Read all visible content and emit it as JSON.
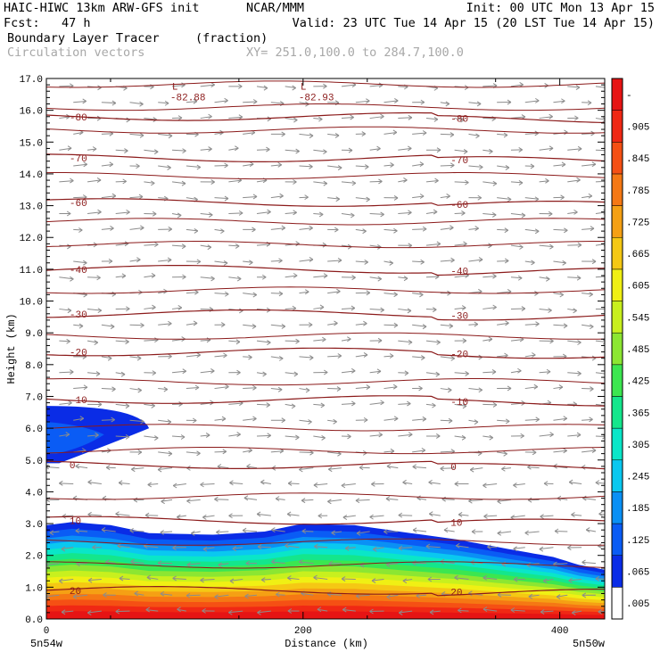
{
  "header": {
    "model": "HAIC-HIWC 13km ARW-GFS init",
    "org": "NCAR/MMM",
    "init": "Init: 00 UTC Mon 13 Apr 15",
    "fcst": "Fcst:   47 h",
    "valid": "Valid: 23 UTC Tue 14 Apr 15 (20 LST Tue 14 Apr 15)",
    "field": "Boundary Layer Tracer",
    "field_units": "(fraction)",
    "vector_label": "Circulation vectors",
    "xsec": "XY= 251.0,100.0 to 284.7,100.0"
  },
  "colors": {
    "contour": "#8b1a1a",
    "vector": "#8c8c8c",
    "text_gray": "#a8a8a8"
  },
  "chart_data": {
    "type": "heatmap",
    "title": "Boundary Layer Tracer",
    "xlabel": "Distance (km)",
    "ylabel": "Height (km)",
    "xlim": [
      0,
      435
    ],
    "ylim": [
      0,
      17
    ],
    "x_ticks": [
      {
        "value": 0,
        "label": "0"
      },
      {
        "value": 200,
        "label": "200"
      },
      {
        "value": 400,
        "label": "400"
      }
    ],
    "x_end_labels": {
      "left": "5n54w",
      "right": "5n50w"
    },
    "y_ticks": [
      "0.0",
      "1.0",
      "2.0",
      "3.0",
      "4.0",
      "5.0",
      "6.0",
      "7.0",
      "8.0",
      "9.0",
      "10.0",
      "11.0",
      "12.0",
      "13.0",
      "14.0",
      "15.0",
      "16.0",
      "17.0"
    ],
    "colorbar": {
      "labels": [
        ".005",
        ".065",
        ".125",
        ".185",
        ".245",
        ".305",
        ".365",
        ".425",
        ".485",
        ".545",
        ".605",
        ".665",
        ".725",
        ".785",
        ".845",
        ".905",
        "-"
      ],
      "colors": [
        "#ffffff",
        "#0a2ce6",
        "#0a5cf5",
        "#0a90f5",
        "#0ac8f0",
        "#0ae6c8",
        "#14e68c",
        "#3ce650",
        "#8ce632",
        "#c8f01e",
        "#f0f014",
        "#f5c814",
        "#f5a014",
        "#f57814",
        "#f55014",
        "#f02814",
        "#e61414"
      ]
    },
    "isotherms": [
      {
        "label": "20",
        "value": 20,
        "y_km": 0.9
      },
      {
        "label": "10",
        "value": 10,
        "y_km": 3.1
      },
      {
        "label": "0",
        "value": 0,
        "y_km": 4.85
      },
      {
        "label": "-10",
        "value": -10,
        "y_km": 6.9
      },
      {
        "label": "-20",
        "value": -20,
        "y_km": 8.4
      },
      {
        "label": "-30",
        "value": -30,
        "y_km": 9.6
      },
      {
        "label": "-40",
        "value": -40,
        "y_km": 11.0
      },
      {
        "label": "-60",
        "value": -60,
        "y_km": 13.1
      },
      {
        "label": "-70",
        "value": -70,
        "y_km": 14.5
      },
      {
        "label": "-80",
        "value": -80,
        "y_km": 15.8
      }
    ],
    "minima": [
      {
        "symbol": "L",
        "label": "-82.88",
        "x": 100,
        "y": 16.6
      },
      {
        "symbol": "L",
        "label": "-82.93",
        "x": 200,
        "y": 16.6
      }
    ],
    "tracer_top_km": [
      [
        0,
        2.95
      ],
      [
        20,
        3.05
      ],
      [
        50,
        2.95
      ],
      [
        80,
        2.7
      ],
      [
        130,
        2.65
      ],
      [
        170,
        2.75
      ],
      [
        200,
        3.0
      ],
      [
        240,
        2.95
      ],
      [
        275,
        2.75
      ],
      [
        320,
        2.5
      ],
      [
        360,
        2.2
      ],
      [
        395,
        1.95
      ],
      [
        415,
        1.7
      ],
      [
        435,
        1.55
      ]
    ],
    "upper_patch": {
      "x_range": [
        0,
        80
      ],
      "y_range": [
        4.9,
        6.7
      ]
    }
  }
}
